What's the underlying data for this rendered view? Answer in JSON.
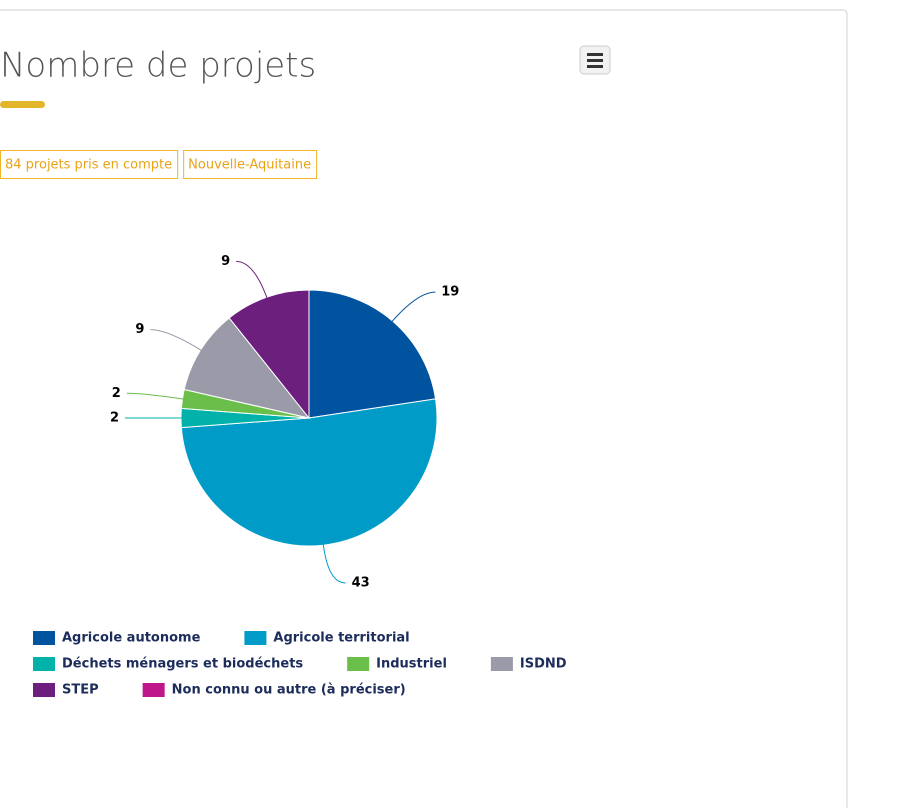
{
  "chart_data": {
    "type": "pie",
    "title": "Nombre de projets",
    "badges": [
      "84 projets pris en compte",
      "Nouvelle-Aquitaine"
    ],
    "series": [
      {
        "name": "Agricole autonome",
        "color": "#00539f",
        "values": [
          19
        ]
      },
      {
        "name": "Agricole territorial",
        "color": "#009bc7",
        "values": [
          43
        ]
      },
      {
        "name": "Déchets ménagers et biodéchets",
        "color": "#00b2a9",
        "values": [
          2
        ]
      },
      {
        "name": "Industriel",
        "color": "#6abf4b",
        "values": [
          2
        ]
      },
      {
        "name": "ISDND",
        "color": "#9a9aa8",
        "values": [
          9
        ]
      },
      {
        "name": "STEP",
        "color": "#6d1f7e",
        "values": [
          9
        ]
      },
      {
        "name": "Non connu ou autre (à préciser)",
        "color": "#c0168c",
        "values": [
          0
        ]
      }
    ],
    "legend": "bottom"
  }
}
